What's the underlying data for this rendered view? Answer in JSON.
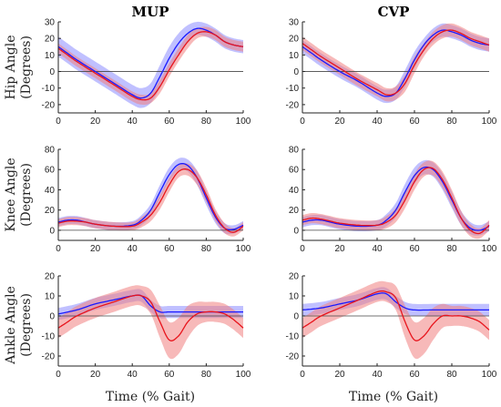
{
  "colors": {
    "blue_line": "#1a1aff",
    "blue_band": "#8c8cff",
    "red_line": "#e8141c",
    "red_band": "#f08080"
  },
  "labels": {
    "col_mup": "MUP",
    "col_cvp": "CVP",
    "hip_1": "Hip Angle",
    "hip_2": "(Degrees)",
    "knee_1": "Knee Angle",
    "knee_2": "(Degrees)",
    "ankle_1": "Ankle Angle",
    "ankle_2": "(Degrees)",
    "xlabel_left": "Time (% Gait)",
    "xlabel_right": "Time (% Gait)"
  },
  "chart_data": [
    {
      "type": "line",
      "id": "hip-mup",
      "column": "MUP",
      "xlim": [
        0,
        100
      ],
      "ylim": [
        -25,
        30
      ],
      "xticks": [
        0,
        20,
        40,
        60,
        80,
        100
      ],
      "yticks": [
        -20,
        -10,
        0,
        10,
        20,
        30
      ],
      "series": [
        {
          "color": "blue",
          "x": [
            0,
            5,
            10,
            20,
            30,
            40,
            45,
            50,
            55,
            60,
            65,
            70,
            75,
            80,
            85,
            90,
            95,
            100
          ],
          "y": [
            15,
            11,
            7,
            0,
            -7,
            -14,
            -16,
            -13,
            -3,
            8,
            17,
            23,
            26,
            25,
            22,
            18,
            16,
            15
          ],
          "sd": [
            6,
            6,
            6,
            6,
            6,
            6,
            6,
            6,
            7,
            7,
            6,
            5,
            4,
            4,
            4,
            4,
            4,
            4
          ]
        },
        {
          "color": "red",
          "x": [
            0,
            5,
            10,
            20,
            30,
            40,
            45,
            50,
            55,
            60,
            65,
            70,
            75,
            80,
            85,
            90,
            95,
            100
          ],
          "y": [
            14,
            10,
            6,
            -1,
            -8,
            -15,
            -17,
            -16,
            -9,
            1,
            10,
            18,
            23,
            24,
            22,
            18,
            16,
            15
          ],
          "sd": [
            3,
            3,
            3,
            3,
            3,
            3,
            3,
            3,
            4,
            4,
            4,
            4,
            3,
            3,
            3,
            3,
            3,
            3
          ]
        }
      ]
    },
    {
      "type": "line",
      "id": "hip-cvp",
      "column": "CVP",
      "xlim": [
        0,
        100
      ],
      "ylim": [
        -25,
        30
      ],
      "xticks": [
        0,
        20,
        40,
        60,
        80,
        100
      ],
      "yticks": [
        -20,
        -10,
        0,
        10,
        20,
        30
      ],
      "series": [
        {
          "color": "blue",
          "x": [
            0,
            5,
            10,
            20,
            30,
            40,
            45,
            50,
            55,
            60,
            65,
            70,
            75,
            80,
            85,
            90,
            95,
            100
          ],
          "y": [
            15,
            11,
            7,
            0,
            -6,
            -13,
            -15,
            -13,
            -4,
            7,
            16,
            22,
            25,
            24,
            22,
            19,
            17,
            16
          ],
          "sd": [
            4,
            4,
            4,
            4,
            4,
            4,
            4,
            4,
            5,
            5,
            4,
            4,
            4,
            4,
            4,
            4,
            4,
            4
          ]
        },
        {
          "color": "red",
          "x": [
            0,
            5,
            10,
            20,
            30,
            40,
            45,
            50,
            55,
            60,
            65,
            70,
            75,
            80,
            85,
            90,
            95,
            100
          ],
          "y": [
            17,
            13,
            9,
            2,
            -5,
            -11,
            -14,
            -13,
            -7,
            4,
            13,
            20,
            24,
            25,
            23,
            20,
            18,
            16
          ],
          "sd": [
            4,
            4,
            4,
            4,
            4,
            4,
            4,
            4,
            5,
            5,
            4,
            4,
            4,
            4,
            4,
            4,
            4,
            4
          ]
        }
      ]
    },
    {
      "type": "line",
      "id": "knee-mup",
      "column": "MUP",
      "xlim": [
        0,
        100
      ],
      "ylim": [
        -10,
        80
      ],
      "xticks": [
        0,
        20,
        40,
        60,
        80,
        100
      ],
      "yticks": [
        0,
        20,
        40,
        60,
        80
      ],
      "series": [
        {
          "color": "blue",
          "x": [
            0,
            5,
            10,
            15,
            20,
            30,
            40,
            45,
            50,
            55,
            60,
            65,
            70,
            75,
            80,
            85,
            90,
            95,
            100
          ],
          "y": [
            8,
            10,
            10,
            8,
            6,
            4,
            5,
            10,
            20,
            38,
            55,
            65,
            64,
            52,
            32,
            13,
            2,
            1,
            5
          ],
          "sd": [
            4,
            4,
            4,
            4,
            4,
            4,
            4,
            5,
            6,
            7,
            7,
            6,
            6,
            7,
            7,
            6,
            5,
            4,
            4
          ]
        },
        {
          "color": "red",
          "x": [
            0,
            5,
            10,
            15,
            20,
            30,
            40,
            45,
            50,
            55,
            60,
            65,
            70,
            75,
            80,
            85,
            90,
            95,
            100
          ],
          "y": [
            7,
            9,
            9,
            8,
            6,
            4,
            4,
            8,
            15,
            28,
            45,
            58,
            60,
            52,
            35,
            15,
            2,
            -2,
            4
          ],
          "sd": [
            4,
            4,
            4,
            4,
            4,
            4,
            4,
            5,
            6,
            7,
            7,
            6,
            6,
            7,
            7,
            6,
            5,
            4,
            4
          ]
        }
      ]
    },
    {
      "type": "line",
      "id": "knee-cvp",
      "column": "CVP",
      "xlim": [
        0,
        100
      ],
      "ylim": [
        -10,
        80
      ],
      "xticks": [
        0,
        20,
        40,
        60,
        80,
        100
      ],
      "yticks": [
        0,
        20,
        40,
        60,
        80
      ],
      "series": [
        {
          "color": "blue",
          "x": [
            0,
            5,
            10,
            15,
            20,
            30,
            40,
            45,
            50,
            55,
            60,
            65,
            70,
            75,
            80,
            85,
            90,
            95,
            100
          ],
          "y": [
            8,
            10,
            10,
            8,
            6,
            4,
            5,
            10,
            20,
            38,
            54,
            62,
            60,
            48,
            30,
            12,
            2,
            0,
            4
          ],
          "sd": [
            5,
            5,
            5,
            5,
            5,
            5,
            5,
            6,
            7,
            8,
            8,
            7,
            7,
            8,
            8,
            7,
            6,
            5,
            5
          ]
        },
        {
          "color": "red",
          "x": [
            0,
            5,
            10,
            15,
            20,
            30,
            40,
            45,
            50,
            55,
            60,
            65,
            70,
            75,
            80,
            85,
            90,
            95,
            100
          ],
          "y": [
            10,
            12,
            11,
            9,
            7,
            5,
            5,
            8,
            15,
            30,
            48,
            60,
            61,
            50,
            32,
            12,
            0,
            -3,
            5
          ],
          "sd": [
            5,
            5,
            5,
            5,
            5,
            5,
            5,
            6,
            7,
            8,
            8,
            7,
            7,
            8,
            8,
            7,
            6,
            5,
            5
          ]
        }
      ]
    },
    {
      "type": "line",
      "id": "ankle-mup",
      "column": "MUP",
      "xlim": [
        0,
        100
      ],
      "ylim": [
        -25,
        20
      ],
      "xticks": [
        0,
        20,
        40,
        60,
        80,
        100
      ],
      "yticks": [
        -20,
        -10,
        0,
        10,
        20
      ],
      "series": [
        {
          "color": "blue",
          "x": [
            0,
            10,
            20,
            30,
            40,
            45,
            50,
            55,
            60,
            70,
            80,
            90,
            100
          ],
          "y": [
            1,
            3,
            6,
            8,
            10,
            10,
            5,
            2,
            2,
            2,
            2,
            2,
            2
          ],
          "sd": [
            3,
            3,
            3,
            3,
            3,
            3,
            3,
            3,
            3,
            3,
            3,
            3,
            3
          ]
        },
        {
          "color": "red",
          "x": [
            0,
            5,
            10,
            20,
            30,
            40,
            45,
            50,
            55,
            60,
            65,
            70,
            75,
            80,
            85,
            90,
            95,
            100
          ],
          "y": [
            -6,
            -3,
            0,
            4,
            7,
            10,
            10,
            7,
            -3,
            -12,
            -10,
            -3,
            1,
            2,
            2,
            1,
            -2,
            -6
          ],
          "sd": [
            5,
            5,
            5,
            5,
            5,
            5,
            5,
            6,
            8,
            9,
            9,
            8,
            6,
            5,
            5,
            5,
            5,
            5
          ]
        }
      ]
    },
    {
      "type": "line",
      "id": "ankle-cvp",
      "column": "CVP",
      "xlim": [
        0,
        100
      ],
      "ylim": [
        -25,
        20
      ],
      "xticks": [
        0,
        20,
        40,
        60,
        80,
        100
      ],
      "yticks": [
        -20,
        -10,
        0,
        10,
        20
      ],
      "series": [
        {
          "color": "blue",
          "x": [
            0,
            10,
            20,
            30,
            40,
            45,
            50,
            55,
            60,
            70,
            80,
            90,
            100
          ],
          "y": [
            3,
            4,
            6,
            8,
            11,
            11,
            7,
            4,
            3,
            3,
            3,
            3,
            3
          ],
          "sd": [
            3,
            3,
            3,
            3,
            3,
            3,
            3,
            3,
            3,
            3,
            3,
            3,
            3
          ]
        },
        {
          "color": "red",
          "x": [
            0,
            5,
            10,
            20,
            30,
            40,
            45,
            50,
            55,
            60,
            65,
            70,
            75,
            80,
            85,
            90,
            95,
            100
          ],
          "y": [
            -6,
            -3,
            0,
            4,
            8,
            12,
            12,
            9,
            -3,
            -12,
            -10,
            -4,
            0,
            0,
            0,
            -1,
            -3,
            -7
          ],
          "sd": [
            5,
            5,
            5,
            5,
            5,
            5,
            5,
            6,
            8,
            9,
            9,
            8,
            6,
            5,
            5,
            5,
            5,
            5
          ]
        }
      ]
    }
  ]
}
